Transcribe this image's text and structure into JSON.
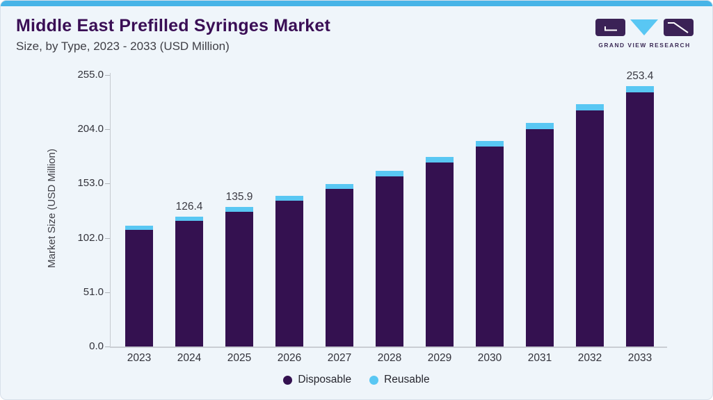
{
  "header": {
    "title": "Middle East Prefilled Syringes Market",
    "subtitle": "Size, by Type, 2023 - 2033 (USD Million)"
  },
  "logo": {
    "text": "GRAND VIEW RESEARCH"
  },
  "colors": {
    "accent_stripe": "#47b4e7",
    "card_bg": "#eff5fa",
    "title": "#3a0e55",
    "disposable": "#341150",
    "reusable": "#59c7f3",
    "logo_purple": "#3b2256",
    "axis_line": "#c9cdd3",
    "tick_text": "#32323a"
  },
  "chart_data": {
    "type": "bar",
    "stacked": true,
    "title": "Middle East Prefilled Syringes Market Size, by Type, 2023 - 2033 (USD Million)",
    "ylabel": "Market Size (USD Million)",
    "xlabel": "",
    "ylim": [
      0,
      255
    ],
    "ytick_labels": [
      "0.0",
      "51.0",
      "102.0",
      "153.0",
      "204.0",
      "255.0"
    ],
    "grid": false,
    "legend_position": "bottom-center",
    "categories": [
      "2023",
      "2024",
      "2025",
      "2026",
      "2027",
      "2028",
      "2029",
      "2030",
      "2031",
      "2032",
      "2033"
    ],
    "series": [
      {
        "name": "Disposable",
        "color": "#341150",
        "values": [
          113.5,
          122.1,
          131.4,
          141.8,
          153.1,
          165.7,
          179.4,
          194.7,
          211.6,
          229.4,
          247.1
        ]
      },
      {
        "name": "Reusable",
        "color": "#59c7f3",
        "values": [
          4.1,
          4.3,
          4.5,
          4.7,
          4.9,
          5.1,
          5.3,
          5.6,
          5.8,
          6.1,
          6.3
        ]
      }
    ],
    "totals": [
      117.6,
      126.4,
      135.9,
      146.5,
      158.0,
      170.8,
      184.7,
      200.3,
      217.4,
      235.5,
      253.4
    ],
    "bar_value_labels": [
      "",
      "126.4",
      "135.9",
      "",
      "",
      "",
      "",
      "",
      "",
      "",
      "253.4"
    ]
  },
  "legend": {
    "items": [
      {
        "label": "Disposable",
        "color": "#341150"
      },
      {
        "label": "Reusable",
        "color": "#59c7f3"
      }
    ]
  }
}
